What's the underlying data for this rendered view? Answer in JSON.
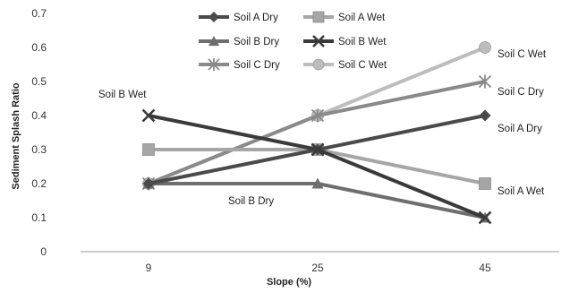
{
  "chart_data": {
    "type": "line",
    "title": "",
    "xlabel": "Slope (%)",
    "ylabel": "Sediment Splash Ratio",
    "categories": [
      "9",
      "25",
      "45"
    ],
    "ylim": [
      0,
      0.7
    ],
    "yticks": [
      "0",
      "0.1",
      "0.2",
      "0.3",
      "0.4",
      "0.5",
      "0.6",
      "0.7"
    ],
    "grid": false,
    "legend": "top-center",
    "series": [
      {
        "name": "Soil A Dry",
        "values": [
          0.2,
          0.3,
          0.4
        ],
        "color": "#4a4a4a",
        "marker": "diamond"
      },
      {
        "name": "Soil A Wet",
        "values": [
          0.3,
          0.3,
          0.2
        ],
        "color": "#a6a6a6",
        "marker": "square"
      },
      {
        "name": "Soil B Dry",
        "values": [
          0.2,
          0.2,
          0.1
        ],
        "color": "#6e6e6e",
        "marker": "triangle"
      },
      {
        "name": "Soil B Wet",
        "values": [
          0.4,
          0.3,
          0.1
        ],
        "color": "#3a3a3a",
        "marker": "x"
      },
      {
        "name": "Soil C Dry",
        "values": [
          0.2,
          0.4,
          0.5
        ],
        "color": "#8a8a8a",
        "marker": "star"
      },
      {
        "name": "Soil C Wet",
        "values": [
          0.2,
          0.4,
          0.6
        ],
        "color": "#bdbdbd",
        "marker": "circle"
      }
    ],
    "annotations": [
      "Soil B Wet",
      "Soil B Dry",
      "Soil C Wet",
      "Soil C Dry",
      "Soil  A Dry",
      "Soil A Wet"
    ]
  }
}
